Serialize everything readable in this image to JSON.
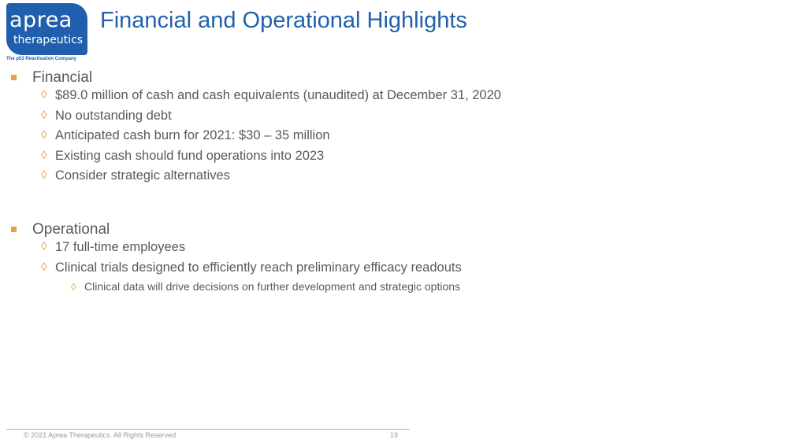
{
  "logo": {
    "word": "aprea",
    "sub": "therapeutics",
    "tagline": "The p53 Reactivation Company"
  },
  "title": "Financial and Operational Highlights",
  "financial": {
    "heading": "Financial",
    "items": [
      "$89.0 million of cash and cash equivalents (unaudited) at December 31, 2020",
      "No outstanding debt",
      "Anticipated cash burn for 2021: $30 – 35 million",
      "Existing cash should fund operations into 2023",
      "Consider strategic alternatives"
    ]
  },
  "operational": {
    "heading": "Operational",
    "items": [
      "17 full-time employees",
      "Clinical trials designed to efficiently reach preliminary efficacy readouts"
    ],
    "subitems": [
      "Clinical data will drive decisions on further development and strategic options"
    ]
  },
  "footer": {
    "copyright": "© 2021 Aprea Therapeutics. All Rights Reserved",
    "page": "19"
  },
  "colors": {
    "title": "#2161ad",
    "logo_bg": "#1f5fae",
    "bullet": "#e8a33d",
    "body_text": "#595959"
  },
  "icons": {
    "level1_bullet": "square-bullet-icon",
    "level2_bullet": "diamond-bullet-icon"
  }
}
